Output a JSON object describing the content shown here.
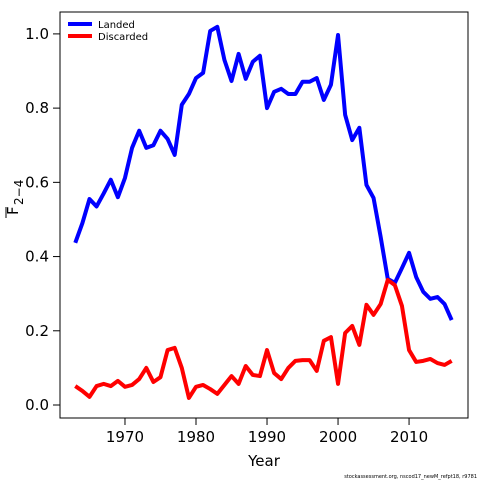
{
  "chart_data": {
    "type": "line",
    "x": [
      1963,
      1964,
      1965,
      1966,
      1967,
      1968,
      1969,
      1970,
      1971,
      1972,
      1973,
      1974,
      1975,
      1976,
      1977,
      1978,
      1979,
      1980,
      1981,
      1982,
      1983,
      1984,
      1985,
      1986,
      1987,
      1988,
      1989,
      1990,
      1991,
      1992,
      1993,
      1994,
      1995,
      1996,
      1997,
      1998,
      1999,
      2000,
      2001,
      2002,
      2003,
      2004,
      2005,
      2006,
      2007,
      2008,
      2009,
      2010,
      2011,
      2012,
      2013,
      2014,
      2015,
      2016
    ],
    "series": [
      {
        "name": "Landed",
        "color": "#0000ff",
        "values": [
          0.437,
          0.49,
          0.555,
          0.535,
          0.57,
          0.607,
          0.56,
          0.612,
          0.693,
          0.739,
          0.693,
          0.7,
          0.739,
          0.717,
          0.674,
          0.809,
          0.838,
          0.881,
          0.895,
          1.008,
          1.019,
          0.93,
          0.873,
          0.946,
          0.879,
          0.925,
          0.941,
          0.8,
          0.844,
          0.852,
          0.838,
          0.838,
          0.871,
          0.871,
          0.881,
          0.822,
          0.863,
          0.997,
          0.782,
          0.714,
          0.747,
          0.593,
          0.558,
          0.453,
          0.34,
          0.329,
          0.369,
          0.41,
          0.345,
          0.305,
          0.286,
          0.291,
          0.272,
          0.229
        ]
      },
      {
        "name": "Discarded",
        "color": "#ff0000",
        "values": [
          0.051,
          0.038,
          0.022,
          0.051,
          0.057,
          0.051,
          0.065,
          0.049,
          0.054,
          0.07,
          0.1,
          0.062,
          0.075,
          0.148,
          0.154,
          0.1,
          0.019,
          0.049,
          0.054,
          0.043,
          0.03,
          0.054,
          0.078,
          0.057,
          0.105,
          0.081,
          0.078,
          0.148,
          0.086,
          0.07,
          0.1,
          0.119,
          0.121,
          0.121,
          0.092,
          0.173,
          0.183,
          0.057,
          0.194,
          0.213,
          0.162,
          0.27,
          0.243,
          0.272,
          0.337,
          0.323,
          0.267,
          0.148,
          0.116,
          0.119,
          0.124,
          0.113,
          0.108,
          0.119
        ]
      }
    ],
    "x_label": "Year",
    "y_label": "F",
    "y_label_sub": "2−4",
    "xlim": [
      1960.85,
      2018.3
    ],
    "xticks": [
      1970,
      1980,
      1990,
      2000,
      2010
    ],
    "ylim": [
      -0.035,
      1.059
    ],
    "yticks": [
      {
        "value": 0,
        "label": "0.0"
      },
      {
        "value": 0.2,
        "label": "0.2"
      },
      {
        "value": 0.4,
        "label": "0.4"
      },
      {
        "value": 0.6,
        "label": "0.6"
      },
      {
        "value": 0.8,
        "label": "0.8"
      },
      {
        "value": 1,
        "label": "1.0"
      }
    ],
    "legend": "top-left",
    "grid": false,
    "footnote": "stockassessment.org, nscod17_newM_refpt18, r9781"
  }
}
